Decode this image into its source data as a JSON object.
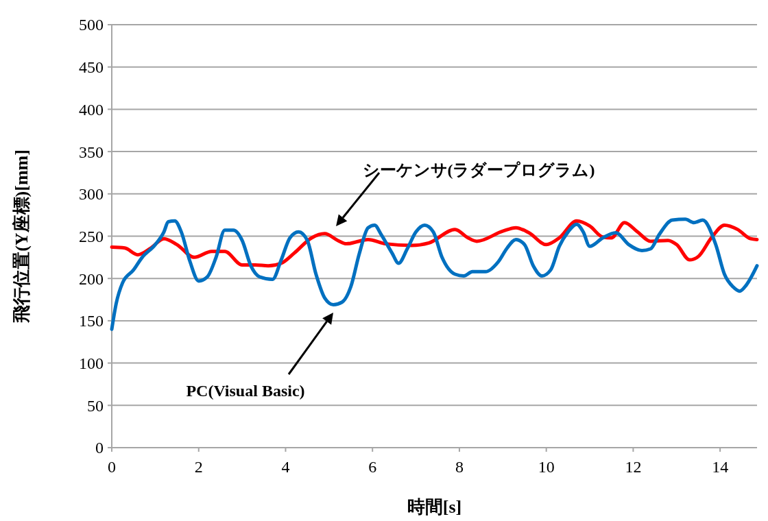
{
  "chart_data": {
    "type": "line",
    "xlabel": "時間[s]",
    "ylabel": "飛行位置(Y座標)[mm]",
    "xlim": [
      0,
      14.85
    ],
    "ylim": [
      0,
      500
    ],
    "xticks": [
      0,
      2,
      4,
      6,
      8,
      10,
      12,
      14
    ],
    "yticks": [
      0,
      50,
      100,
      150,
      200,
      250,
      300,
      350,
      400,
      450,
      500
    ],
    "grid": "y",
    "marker": "none",
    "line_style": "solid",
    "series": [
      {
        "color": "#ff0000",
        "x": [
          0,
          0.3,
          0.6,
          0.9,
          1.2,
          1.5,
          1.9,
          2.3,
          2.6,
          3.0,
          3.3,
          3.6,
          3.9,
          4.2,
          4.6,
          4.9,
          5.2,
          5.4,
          5.9,
          6.3,
          6.9,
          7.3,
          7.9,
          8.2,
          8.4,
          9.0,
          9.3,
          9.6,
          10.0,
          10.3,
          10.7,
          11.0,
          11.3,
          11.5,
          11.8,
          12.1,
          12.4,
          12.8,
          13.0,
          13.3,
          13.5,
          13.8,
          14.1,
          14.4,
          14.7,
          14.85
        ],
        "values": [
          237,
          236,
          228,
          236,
          247,
          240,
          225,
          232,
          232,
          216,
          216,
          215,
          218,
          230,
          248,
          253,
          245,
          241,
          246,
          241,
          239,
          242,
          258,
          248,
          244,
          256,
          260,
          254,
          240,
          248,
          268,
          262,
          249,
          248,
          266,
          255,
          244,
          245,
          240,
          222,
          226,
          248,
          263,
          258,
          247,
          246
        ]
      },
      {
        "color": "#0070c0",
        "x": [
          0,
          0.1,
          0.25,
          0.5,
          0.7,
          1.0,
          1.2,
          1.3,
          1.45,
          1.6,
          1.8,
          2.0,
          2.2,
          2.4,
          2.6,
          2.8,
          3.0,
          3.2,
          3.4,
          3.7,
          3.9,
          4.1,
          4.3,
          4.5,
          4.7,
          4.9,
          5.1,
          5.3,
          5.5,
          5.7,
          5.9,
          6.05,
          6.2,
          6.45,
          6.6,
          6.8,
          7.0,
          7.2,
          7.4,
          7.6,
          7.9,
          8.1,
          8.3,
          8.6,
          8.9,
          9.1,
          9.3,
          9.5,
          9.7,
          9.9,
          10.1,
          10.3,
          10.5,
          10.7,
          10.85,
          11.0,
          11.3,
          11.6,
          11.9,
          12.2,
          12.4,
          12.6,
          12.9,
          13.2,
          13.4,
          13.6,
          13.9,
          14.1,
          14.3,
          14.45,
          14.6,
          14.85
        ],
        "values": [
          140,
          170,
          195,
          210,
          225,
          240,
          255,
          267,
          268,
          255,
          220,
          197,
          202,
          225,
          257,
          257,
          245,
          215,
          202,
          199,
          222,
          248,
          255,
          245,
          205,
          177,
          169,
          172,
          190,
          230,
          260,
          263,
          252,
          230,
          218,
          235,
          255,
          263,
          255,
          225,
          205,
          203,
          208,
          208,
          220,
          236,
          246,
          240,
          215,
          203,
          210,
          238,
          255,
          264,
          255,
          238,
          248,
          254,
          240,
          233,
          235,
          252,
          269,
          270,
          266,
          269,
          240,
          205,
          190,
          185,
          192,
          215
        ]
      }
    ],
    "annotations": [
      "シーケンサ(ラダープログラム)",
      "PC(Visual Basic)"
    ]
  }
}
